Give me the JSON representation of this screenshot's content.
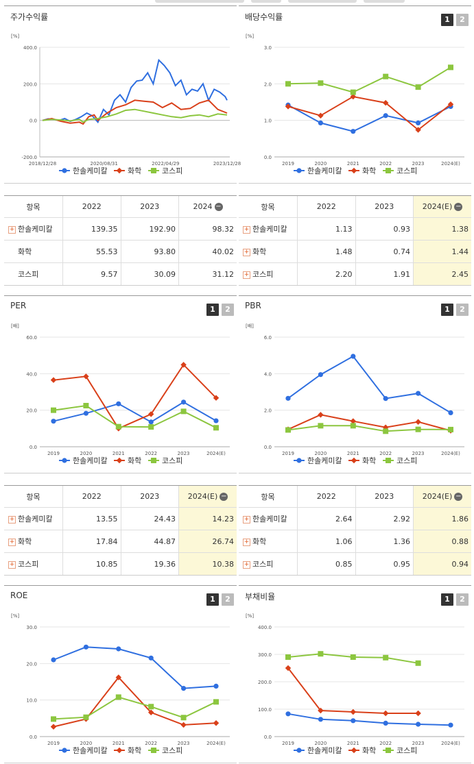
{
  "colors": {
    "company": "#2f6fe0",
    "sector": "#d9401a",
    "kospi": "#8cc63f",
    "axis": "#999999",
    "grid": "#e5e5e5"
  },
  "legend": {
    "company": "한솔케미칼",
    "sector": "화학",
    "kospi": "코스피"
  },
  "panels": {
    "stock_return": {
      "title": "주가수익률",
      "unit": "[%]"
    },
    "dividend": {
      "title": "배당수익률",
      "unit": "[%]",
      "btn1": "1",
      "btn2": "2"
    },
    "per": {
      "title": "PER",
      "unit": "[배]",
      "btn1": "1",
      "btn2": "2"
    },
    "pbr": {
      "title": "PBR",
      "unit": "[배]",
      "btn1": "1",
      "btn2": "2"
    },
    "roe": {
      "title": "ROE",
      "unit": "[%]",
      "btn1": "1",
      "btn2": "2"
    },
    "debt": {
      "title": "부채비율",
      "unit": "[%]",
      "btn1": "1",
      "btn2": "2"
    }
  },
  "tables": {
    "stock_return": {
      "headers": [
        "항목",
        "2022",
        "2023",
        "2024"
      ],
      "rows": [
        {
          "name": "한솔케미칼",
          "values": [
            "139.35",
            "192.90",
            "98.32"
          ]
        },
        {
          "name": "화학",
          "values": [
            "55.53",
            "93.80",
            "40.02"
          ]
        },
        {
          "name": "코스피",
          "values": [
            "9.57",
            "30.09",
            "31.12"
          ]
        }
      ]
    },
    "dividend": {
      "headers": [
        "항목",
        "2022",
        "2023",
        "2024(E)"
      ],
      "rows": [
        {
          "name": "한솔케미칼",
          "values": [
            "1.13",
            "0.93",
            "1.38"
          ]
        },
        {
          "name": "화학",
          "values": [
            "1.48",
            "0.74",
            "1.44"
          ]
        },
        {
          "name": "코스피",
          "values": [
            "2.20",
            "1.91",
            "2.45"
          ]
        }
      ]
    },
    "per": {
      "headers": [
        "항목",
        "2022",
        "2023",
        "2024(E)"
      ],
      "rows": [
        {
          "name": "한솔케미칼",
          "values": [
            "13.55",
            "24.43",
            "14.23"
          ]
        },
        {
          "name": "화학",
          "values": [
            "17.84",
            "44.87",
            "26.74"
          ]
        },
        {
          "name": "코스피",
          "values": [
            "10.85",
            "19.36",
            "10.38"
          ]
        }
      ]
    },
    "pbr": {
      "headers": [
        "항목",
        "2022",
        "2023",
        "2024(E)"
      ],
      "rows": [
        {
          "name": "한솔케미칼",
          "values": [
            "2.64",
            "2.92",
            "1.86"
          ]
        },
        {
          "name": "화학",
          "values": [
            "1.06",
            "1.36",
            "0.88"
          ]
        },
        {
          "name": "코스피",
          "values": [
            "0.85",
            "0.95",
            "0.94"
          ]
        }
      ]
    }
  },
  "chart_data": [
    {
      "id": "stock_return",
      "type": "line",
      "ylim": [
        -200,
        400
      ],
      "yticks": [
        "400.0",
        "200.0",
        "0.0",
        "-200.0"
      ],
      "xticks": [
        "2018/12/28",
        "2020/08/31",
        "2022/04/29",
        "2023/12/28"
      ],
      "series": [
        {
          "name": "한솔케미칼",
          "x": [
            0,
            3,
            6,
            9,
            12,
            15,
            18,
            21,
            24,
            27,
            30,
            33,
            36,
            39,
            42,
            45,
            48,
            51,
            54,
            57,
            60,
            63,
            66,
            69,
            72,
            75,
            78,
            81,
            84,
            87,
            90,
            93,
            96,
            99,
            100
          ],
          "values": [
            0,
            8,
            5,
            0,
            10,
            -5,
            5,
            20,
            40,
            25,
            -10,
            60,
            30,
            110,
            140,
            100,
            180,
            215,
            220,
            260,
            200,
            330,
            300,
            260,
            190,
            220,
            140,
            170,
            160,
            200,
            110,
            170,
            155,
            130,
            110
          ]
        },
        {
          "name": "화학",
          "x": [
            0,
            5,
            10,
            15,
            20,
            22,
            25,
            28,
            30,
            35,
            40,
            45,
            50,
            55,
            60,
            65,
            70,
            75,
            80,
            85,
            90,
            95,
            100
          ],
          "values": [
            0,
            10,
            -5,
            -15,
            -10,
            -20,
            20,
            30,
            0,
            40,
            70,
            85,
            110,
            105,
            100,
            70,
            95,
            60,
            65,
            95,
            110,
            60,
            40
          ]
        },
        {
          "name": "코스피",
          "x": [
            0,
            5,
            10,
            15,
            20,
            22,
            25,
            30,
            35,
            40,
            45,
            50,
            55,
            60,
            65,
            70,
            75,
            80,
            85,
            90,
            95,
            100
          ],
          "values": [
            0,
            5,
            2,
            -3,
            5,
            -10,
            5,
            10,
            20,
            35,
            55,
            60,
            50,
            40,
            30,
            20,
            15,
            25,
            30,
            20,
            35,
            30
          ]
        }
      ]
    },
    {
      "id": "dividend",
      "type": "line",
      "ylim": [
        0,
        3
      ],
      "yticks": [
        "3.0",
        "2.0",
        "1.0",
        "0.0"
      ],
      "categories": [
        "2019",
        "2020",
        "2021",
        "2022",
        "2023",
        "2024(E)"
      ],
      "series": [
        {
          "name": "한솔케미칼",
          "values": [
            1.42,
            0.93,
            0.7,
            1.13,
            0.93,
            1.38
          ]
        },
        {
          "name": "화학",
          "values": [
            1.38,
            1.13,
            1.65,
            1.48,
            0.74,
            1.44
          ]
        },
        {
          "name": "코스피",
          "values": [
            2.0,
            2.02,
            1.77,
            2.2,
            1.91,
            2.45
          ]
        }
      ]
    },
    {
      "id": "per",
      "type": "line",
      "ylim": [
        0,
        60
      ],
      "yticks": [
        "60.0",
        "40.0",
        "20.0",
        "0.0"
      ],
      "categories": [
        "2019",
        "2020",
        "2021",
        "2022",
        "2023",
        "2024(E)"
      ],
      "series": [
        {
          "name": "한솔케미칼",
          "values": [
            14.0,
            18.3,
            23.5,
            13.55,
            24.43,
            14.23
          ]
        },
        {
          "name": "화학",
          "values": [
            36.5,
            38.5,
            10.0,
            17.84,
            44.87,
            26.74
          ]
        },
        {
          "name": "코스피",
          "values": [
            20.0,
            22.5,
            11.0,
            10.85,
            19.36,
            10.38
          ]
        }
      ]
    },
    {
      "id": "pbr",
      "type": "line",
      "ylim": [
        0,
        6
      ],
      "yticks": [
        "6.0",
        "4.0",
        "2.0",
        "0.0"
      ],
      "categories": [
        "2019",
        "2020",
        "2021",
        "2022",
        "2023",
        "2024(E)"
      ],
      "series": [
        {
          "name": "한솔케미칼",
          "values": [
            2.65,
            3.95,
            4.95,
            2.64,
            2.92,
            1.86
          ]
        },
        {
          "name": "화학",
          "values": [
            0.95,
            1.75,
            1.4,
            1.06,
            1.36,
            0.88
          ]
        },
        {
          "name": "코스피",
          "values": [
            0.92,
            1.15,
            1.15,
            0.85,
            0.95,
            0.94
          ]
        }
      ]
    },
    {
      "id": "roe",
      "type": "line",
      "ylim": [
        0,
        30
      ],
      "yticks": [
        "30.0",
        "20.0",
        "10.0",
        "0.0"
      ],
      "categories": [
        "2019",
        "2020",
        "2021",
        "2022",
        "2023",
        "2024(E)"
      ],
      "series": [
        {
          "name": "한솔케미칼",
          "values": [
            21.0,
            24.5,
            24.0,
            21.5,
            13.2,
            13.8
          ]
        },
        {
          "name": "화학",
          "values": [
            2.7,
            4.8,
            16.2,
            6.6,
            3.2,
            3.7
          ]
        },
        {
          "name": "코스피",
          "values": [
            4.8,
            5.3,
            10.8,
            8.2,
            5.2,
            9.5
          ]
        }
      ]
    },
    {
      "id": "debt",
      "type": "line",
      "ylim": [
        0,
        400
      ],
      "yticks": [
        "400.0",
        "300.0",
        "200.0",
        "100.0",
        "0.0"
      ],
      "categories": [
        "2019",
        "2020",
        "2021",
        "2022",
        "2023",
        "2024(E)"
      ],
      "series": [
        {
          "name": "한솔케미칼",
          "values": [
            83,
            63,
            58,
            49,
            45,
            42
          ]
        },
        {
          "name": "화학",
          "values": [
            250,
            95,
            90,
            85,
            85,
            null
          ]
        },
        {
          "name": "코스피",
          "values": [
            290,
            302,
            290,
            288,
            268,
            null
          ]
        }
      ]
    }
  ]
}
